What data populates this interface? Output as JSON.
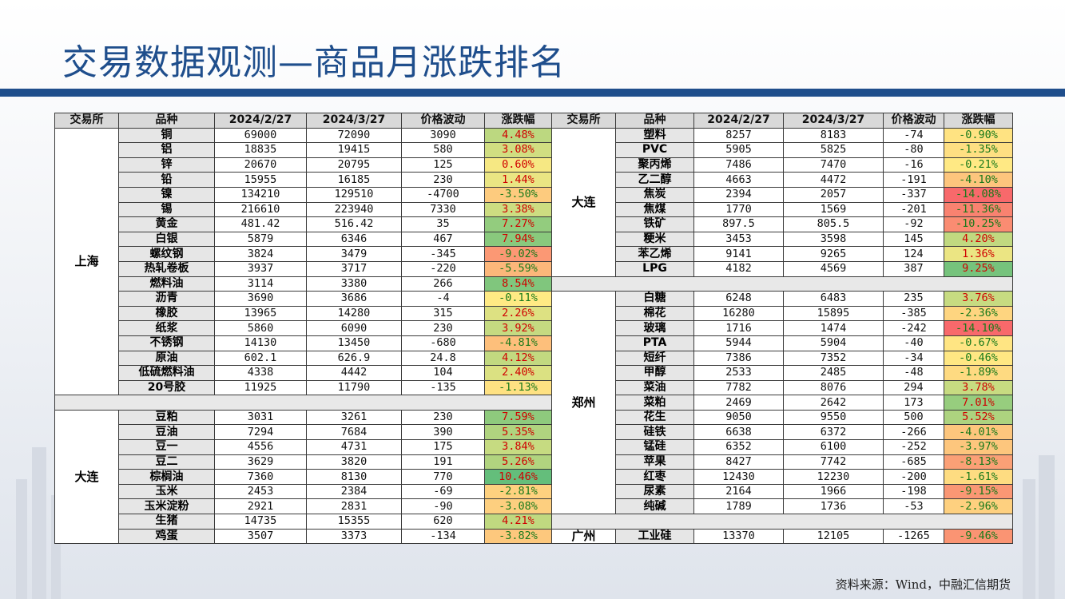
{
  "title": "交易数据观测—商品月涨跌排名",
  "headers": [
    "交易所",
    "品种",
    "2024/2/27",
    "2024/3/27",
    "价格波动",
    "涨跌幅"
  ],
  "colors": {
    "title": "#1f4e8c",
    "up_strong": "#63be7b",
    "down_strong": "#f8696b",
    "neutral": "#ffeb84",
    "negative_text": "#1a7a1a",
    "positive_text": "#d00000"
  },
  "left_table": [
    {
      "exchange": "上海",
      "rows": [
        {
          "name": "铜",
          "v1": "69000",
          "v2": "72090",
          "diff": "3090",
          "chg": "4.48%",
          "pct": 4.48
        },
        {
          "name": "铝",
          "v1": "18835",
          "v2": "19415",
          "diff": "580",
          "chg": "3.08%",
          "pct": 3.08
        },
        {
          "name": "锌",
          "v1": "20670",
          "v2": "20795",
          "diff": "125",
          "chg": "0.60%",
          "pct": 0.6
        },
        {
          "name": "铅",
          "v1": "15955",
          "v2": "16185",
          "diff": "230",
          "chg": "1.44%",
          "pct": 1.44
        },
        {
          "name": "镍",
          "v1": "134210",
          "v2": "129510",
          "diff": "-4700",
          "chg": "-3.50%",
          "pct": -3.5
        },
        {
          "name": "锡",
          "v1": "216610",
          "v2": "223940",
          "diff": "7330",
          "chg": "3.38%",
          "pct": 3.38
        },
        {
          "name": "黄金",
          "v1": "481.42",
          "v2": "516.42",
          "diff": "35",
          "chg": "7.27%",
          "pct": 7.27
        },
        {
          "name": "白银",
          "v1": "5879",
          "v2": "6346",
          "diff": "467",
          "chg": "7.94%",
          "pct": 7.94
        },
        {
          "name": "螺纹钢",
          "v1": "3824",
          "v2": "3479",
          "diff": "-345",
          "chg": "-9.02%",
          "pct": -9.02
        },
        {
          "name": "热轧卷板",
          "v1": "3937",
          "v2": "3717",
          "diff": "-220",
          "chg": "-5.59%",
          "pct": -5.59
        },
        {
          "name": "燃料油",
          "v1": "3114",
          "v2": "3380",
          "diff": "266",
          "chg": "8.54%",
          "pct": 8.54
        },
        {
          "name": "沥青",
          "v1": "3690",
          "v2": "3686",
          "diff": "-4",
          "chg": "-0.11%",
          "pct": -0.11
        },
        {
          "name": "橡胶",
          "v1": "13965",
          "v2": "14280",
          "diff": "315",
          "chg": "2.26%",
          "pct": 2.26
        },
        {
          "name": "纸浆",
          "v1": "5860",
          "v2": "6090",
          "diff": "230",
          "chg": "3.92%",
          "pct": 3.92
        },
        {
          "name": "不锈钢",
          "v1": "14130",
          "v2": "13450",
          "diff": "-680",
          "chg": "-4.81%",
          "pct": -4.81
        },
        {
          "name": "原油",
          "v1": "602.1",
          "v2": "626.9",
          "diff": "24.8",
          "chg": "4.12%",
          "pct": 4.12
        },
        {
          "name": "低硫燃料油",
          "v1": "4338",
          "v2": "4442",
          "diff": "104",
          "chg": "2.40%",
          "pct": 2.4
        },
        {
          "name": "20号胶",
          "v1": "11925",
          "v2": "11790",
          "diff": "-135",
          "chg": "-1.13%",
          "pct": -1.13
        }
      ]
    },
    {
      "exchange": "大连",
      "rows": [
        {
          "name": "豆粕",
          "v1": "3031",
          "v2": "3261",
          "diff": "230",
          "chg": "7.59%",
          "pct": 7.59
        },
        {
          "name": "豆油",
          "v1": "7294",
          "v2": "7684",
          "diff": "390",
          "chg": "5.35%",
          "pct": 5.35
        },
        {
          "name": "豆一",
          "v1": "4556",
          "v2": "4731",
          "diff": "175",
          "chg": "3.84%",
          "pct": 3.84
        },
        {
          "name": "豆二",
          "v1": "3629",
          "v2": "3820",
          "diff": "191",
          "chg": "5.26%",
          "pct": 5.26
        },
        {
          "name": "棕榈油",
          "v1": "7360",
          "v2": "8130",
          "diff": "770",
          "chg": "10.46%",
          "pct": 10.46
        },
        {
          "name": "玉米",
          "v1": "2453",
          "v2": "2384",
          "diff": "-69",
          "chg": "-2.81%",
          "pct": -2.81
        },
        {
          "name": "玉米淀粉",
          "v1": "2921",
          "v2": "2831",
          "diff": "-90",
          "chg": "-3.08%",
          "pct": -3.08
        },
        {
          "name": "生猪",
          "v1": "14735",
          "v2": "15355",
          "diff": "620",
          "chg": "4.21%",
          "pct": 4.21
        },
        {
          "name": "鸡蛋",
          "v1": "3507",
          "v2": "3373",
          "diff": "-134",
          "chg": "-3.82%",
          "pct": -3.82
        }
      ]
    }
  ],
  "right_table": [
    {
      "exchange": "大连",
      "rows": [
        {
          "name": "塑料",
          "v1": "8257",
          "v2": "8183",
          "diff": "-74",
          "chg": "-0.90%",
          "pct": -0.9
        },
        {
          "name": "PVC",
          "v1": "5905",
          "v2": "5825",
          "diff": "-80",
          "chg": "-1.35%",
          "pct": -1.35
        },
        {
          "name": "聚丙烯",
          "v1": "7486",
          "v2": "7470",
          "diff": "-16",
          "chg": "-0.21%",
          "pct": -0.21
        },
        {
          "name": "乙二醇",
          "v1": "4663",
          "v2": "4472",
          "diff": "-191",
          "chg": "-4.10%",
          "pct": -4.1
        },
        {
          "name": "焦炭",
          "v1": "2394",
          "v2": "2057",
          "diff": "-337",
          "chg": "-14.08%",
          "pct": -14.08
        },
        {
          "name": "焦煤",
          "v1": "1770",
          "v2": "1569",
          "diff": "-201",
          "chg": "-11.36%",
          "pct": -11.36
        },
        {
          "name": "铁矿",
          "v1": "897.5",
          "v2": "805.5",
          "diff": "-92",
          "chg": "-10.25%",
          "pct": -10.25
        },
        {
          "name": "粳米",
          "v1": "3453",
          "v2": "3598",
          "diff": "145",
          "chg": "4.20%",
          "pct": 4.2
        },
        {
          "name": "苯乙烯",
          "v1": "9141",
          "v2": "9265",
          "diff": "124",
          "chg": "1.36%",
          "pct": 1.36
        },
        {
          "name": "LPG",
          "v1": "4182",
          "v2": "4569",
          "diff": "387",
          "chg": "9.25%",
          "pct": 9.25
        }
      ]
    },
    {
      "exchange": "郑州",
      "rows": [
        {
          "name": "白糖",
          "v1": "6248",
          "v2": "6483",
          "diff": "235",
          "chg": "3.76%",
          "pct": 3.76
        },
        {
          "name": "棉花",
          "v1": "16280",
          "v2": "15895",
          "diff": "-385",
          "chg": "-2.36%",
          "pct": -2.36
        },
        {
          "name": "玻璃",
          "v1": "1716",
          "v2": "1474",
          "diff": "-242",
          "chg": "-14.10%",
          "pct": -14.1
        },
        {
          "name": "PTA",
          "v1": "5944",
          "v2": "5904",
          "diff": "-40",
          "chg": "-0.67%",
          "pct": -0.67
        },
        {
          "name": "短纤",
          "v1": "7386",
          "v2": "7352",
          "diff": "-34",
          "chg": "-0.46%",
          "pct": -0.46
        },
        {
          "name": "甲醇",
          "v1": "2533",
          "v2": "2485",
          "diff": "-48",
          "chg": "-1.89%",
          "pct": -1.89
        },
        {
          "name": "菜油",
          "v1": "7782",
          "v2": "8076",
          "diff": "294",
          "chg": "3.78%",
          "pct": 3.78
        },
        {
          "name": "菜粕",
          "v1": "2469",
          "v2": "2642",
          "diff": "173",
          "chg": "7.01%",
          "pct": 7.01
        },
        {
          "name": "花生",
          "v1": "9050",
          "v2": "9550",
          "diff": "500",
          "chg": "5.52%",
          "pct": 5.52
        },
        {
          "name": "硅铁",
          "v1": "6638",
          "v2": "6372",
          "diff": "-266",
          "chg": "-4.01%",
          "pct": -4.01
        },
        {
          "name": "锰硅",
          "v1": "6352",
          "v2": "6100",
          "diff": "-252",
          "chg": "-3.97%",
          "pct": -3.97
        },
        {
          "name": "苹果",
          "v1": "8427",
          "v2": "7742",
          "diff": "-685",
          "chg": "-8.13%",
          "pct": -8.13
        },
        {
          "name": "红枣",
          "v1": "12430",
          "v2": "12230",
          "diff": "-200",
          "chg": "-1.61%",
          "pct": -1.61
        },
        {
          "name": "尿素",
          "v1": "2164",
          "v2": "1966",
          "diff": "-198",
          "chg": "-9.15%",
          "pct": -9.15
        },
        {
          "name": "纯碱",
          "v1": "1789",
          "v2": "1736",
          "diff": "-53",
          "chg": "-2.96%",
          "pct": -2.96
        }
      ]
    },
    {
      "exchange": "广州",
      "rows": [
        {
          "name": "工业硅",
          "v1": "13370",
          "v2": "12105",
          "diff": "-1265",
          "chg": "-9.46%",
          "pct": -9.46
        }
      ]
    }
  ],
  "source": "资料来源：Wind，中融汇信期货"
}
